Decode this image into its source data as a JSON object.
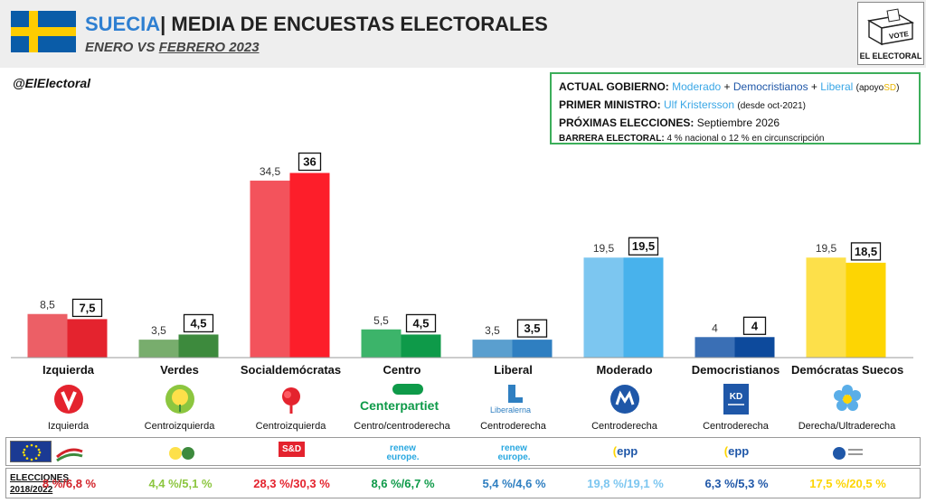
{
  "header": {
    "country": "SUECIA",
    "separator": "|",
    "title": "MEDIA DE ENCUESTAS ELECTORALES",
    "sub_enero": "ENERO",
    "sub_vs": "VS",
    "sub_feb": "FEBRERO 2023",
    "logo_vote": "VOTE",
    "logo_brand": "EL ELECTORAL",
    "handle": "@ElElectoral"
  },
  "gov": {
    "actual_key": "ACTUAL GOBIERNO:",
    "moderado": "Moderado",
    "plus1": "+",
    "democ": "Democristianos",
    "plus2": "+",
    "liberal": "Liberal",
    "apoyo_pre": "(apoyo",
    "apoyo_sd": "SD",
    "apoyo_post": ")",
    "pm_key": "PRIMER MINISTRO:",
    "pm_name": "Ulf Kristersson",
    "pm_note": "(desde oct-2021)",
    "next_key": "PRÓXIMAS ELECCIONES:",
    "next_val": "Septiembre 2026",
    "barrier_key": "BARRERA ELECTORAL:",
    "barrier_val": "4 % nacional o 12 % en circunscripción"
  },
  "colors": {
    "header_bg": "#eeeeee",
    "country": "#2e7fd1",
    "gov_border": "#3cae5a"
  },
  "chart_data": {
    "type": "bar",
    "categories": [
      "Izquierda",
      "Verdes",
      "Socialdemócratas",
      "Centro",
      "Liberal",
      "Moderado",
      "Democristianos",
      "Demócratas Suecos"
    ],
    "series": [
      {
        "name": "ENERO",
        "values": [
          8.5,
          3.5,
          34.5,
          5.5,
          3.5,
          19.5,
          4,
          19.5
        ]
      },
      {
        "name": "FEBRERO 2023",
        "values": [
          7.5,
          4.5,
          36,
          4.5,
          3.5,
          19.5,
          4,
          18.5
        ]
      }
    ],
    "labels_enero": [
      "8,5",
      "3,5",
      "34,5",
      "5,5",
      "3,5",
      "19,5",
      "4",
      "19,5"
    ],
    "labels_febrero": [
      "7,5",
      "4,5",
      "36",
      "4,5",
      "3,5",
      "19,5",
      "4",
      "18,5"
    ],
    "colors_enero": [
      "#ec5f66",
      "#78ad6d",
      "#f3535c",
      "#3cb46a",
      "#5a9fcf",
      "#7cc6f0",
      "#3a6fb5",
      "#fde04a"
    ],
    "colors_febrero": [
      "#e4232e",
      "#3d8a3d",
      "#fd1e2a",
      "#0e9a49",
      "#2f7fc1",
      "#48b2ec",
      "#0d4a9c",
      "#fdd503"
    ],
    "ylim": [
      0,
      40
    ],
    "grid": false,
    "legend": "none"
  },
  "parties": [
    {
      "name": "Izquierda",
      "spectrum": "Izquierda",
      "logo": "v-rose-icon",
      "eu": "ucla",
      "election": "8 %/6,8 %",
      "elcolor": "#d2232a"
    },
    {
      "name": "Verdes",
      "spectrum": "Centroizquierda",
      "logo": "dandelion-icon",
      "eu": "greens",
      "election": "4,4 %/5,1 %",
      "elcolor": "#8cc63f"
    },
    {
      "name": "Socialdemócratas",
      "spectrum": "Centroizquierda",
      "logo": "rose-icon",
      "eu": "S&D",
      "election": "28,3 %/30,3 %",
      "elcolor": "#e4232e"
    },
    {
      "name": "Centro",
      "spectrum": "Centro/centroderecha",
      "logo": "centerpartiet-icon",
      "logo_text": "Centerpartiet",
      "eu": "renew europe.",
      "election": "8,6 %/6,7 %",
      "elcolor": "#0e9a49"
    },
    {
      "name": "Liberal",
      "spectrum": "Centroderecha",
      "logo": "liberalerna-icon",
      "logo_text": "Liberalerna",
      "eu": "renew europe.",
      "election": "5,4 %/4,6 %",
      "elcolor": "#2f7fc1"
    },
    {
      "name": "Moderado",
      "spectrum": "Centroderecha",
      "logo": "moderaterna-icon",
      "eu": "epp",
      "election": "19,8 %/19,1 %",
      "elcolor": "#7cc6f0"
    },
    {
      "name": "Democristianos",
      "spectrum": "Centroderecha",
      "logo": "kd-icon",
      "logo_text": "KD",
      "eu": "epp",
      "election": "6,3 %/5,3 %",
      "elcolor": "#1f57a8"
    },
    {
      "name": "Demócratas Suecos",
      "spectrum": "Derecha/Ultraderecha",
      "logo": "flower-icon",
      "eu": "ecr",
      "election": "17,5 %/20,5 %",
      "elcolor": "#fdd503"
    }
  ],
  "elections_label_1": "ELECCIONES",
  "elections_label_2": "2018/2022"
}
